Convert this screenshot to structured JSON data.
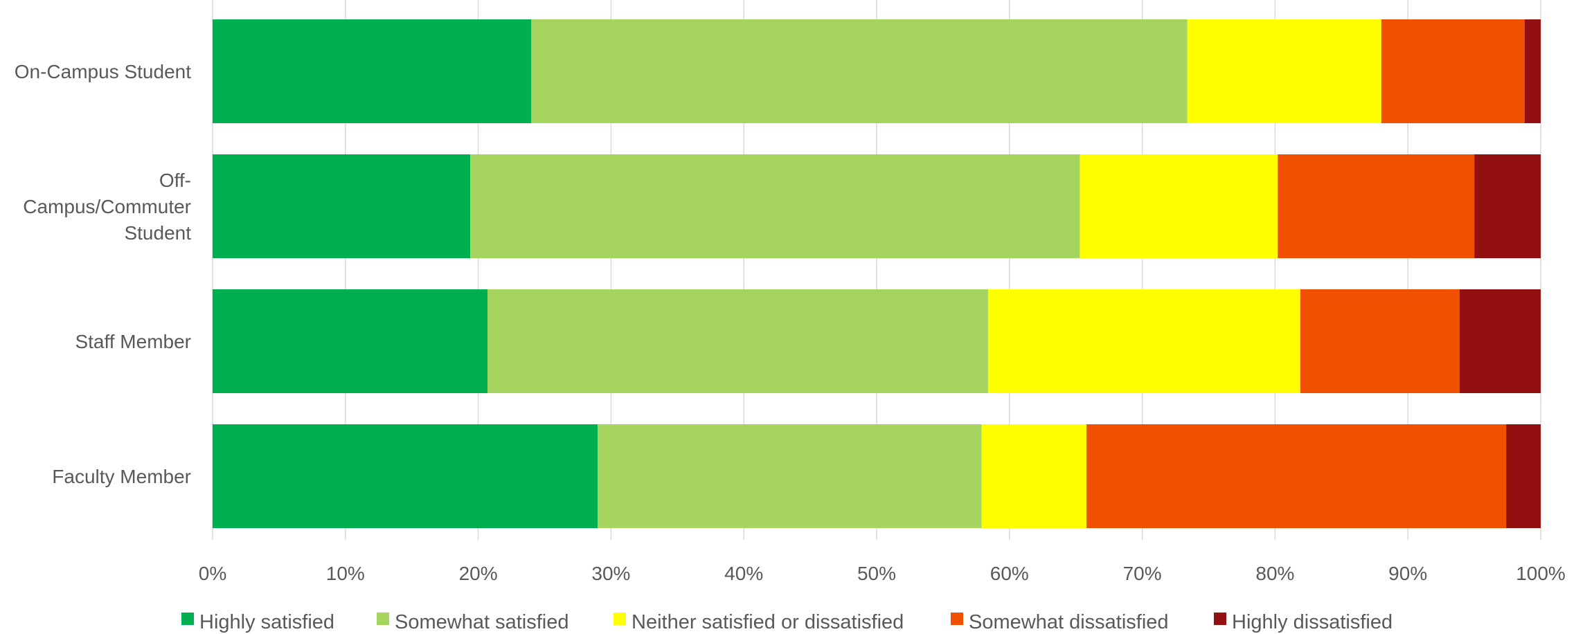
{
  "chart_data": {
    "type": "bar",
    "orientation": "horizontal",
    "stacked": "percent",
    "categories": [
      "On-Campus Student",
      "Off-Campus/Commuter Student",
      "Staff Member",
      "Faculty Member"
    ],
    "category_label_lines": [
      [
        "On-Campus Student"
      ],
      [
        "Off-",
        "Campus/Commuter",
        "Student"
      ],
      [
        "Staff Member"
      ],
      [
        "Faculty Member"
      ]
    ],
    "series": [
      {
        "name": "Highly satisfied",
        "color": "#00b050",
        "values": [
          24,
          19.4,
          20.7,
          29
        ]
      },
      {
        "name": "Somewhat satisfied",
        "color": "#a5d55f",
        "values": [
          49.4,
          45.9,
          37.7,
          28.9
        ]
      },
      {
        "name": "Neither satisfied or dissatisfied",
        "color": "#ffff00",
        "values": [
          14.6,
          14.9,
          23.5,
          7.9
        ]
      },
      {
        "name": "Somewhat dissatisfied",
        "color": "#f05000",
        "values": [
          10.8,
          14.8,
          12,
          31.6
        ]
      },
      {
        "name": "Highly dissatisfied",
        "color": "#921010",
        "values": [
          1.2,
          5,
          6.1,
          2.6
        ]
      }
    ],
    "x_ticks": [
      "0%",
      "10%",
      "20%",
      "30%",
      "40%",
      "50%",
      "60%",
      "70%",
      "80%",
      "90%",
      "100%"
    ],
    "xlim": [
      0,
      100
    ],
    "grid": "vertical",
    "legend_position": "bottom",
    "title": "",
    "xlabel": "",
    "ylabel": ""
  }
}
